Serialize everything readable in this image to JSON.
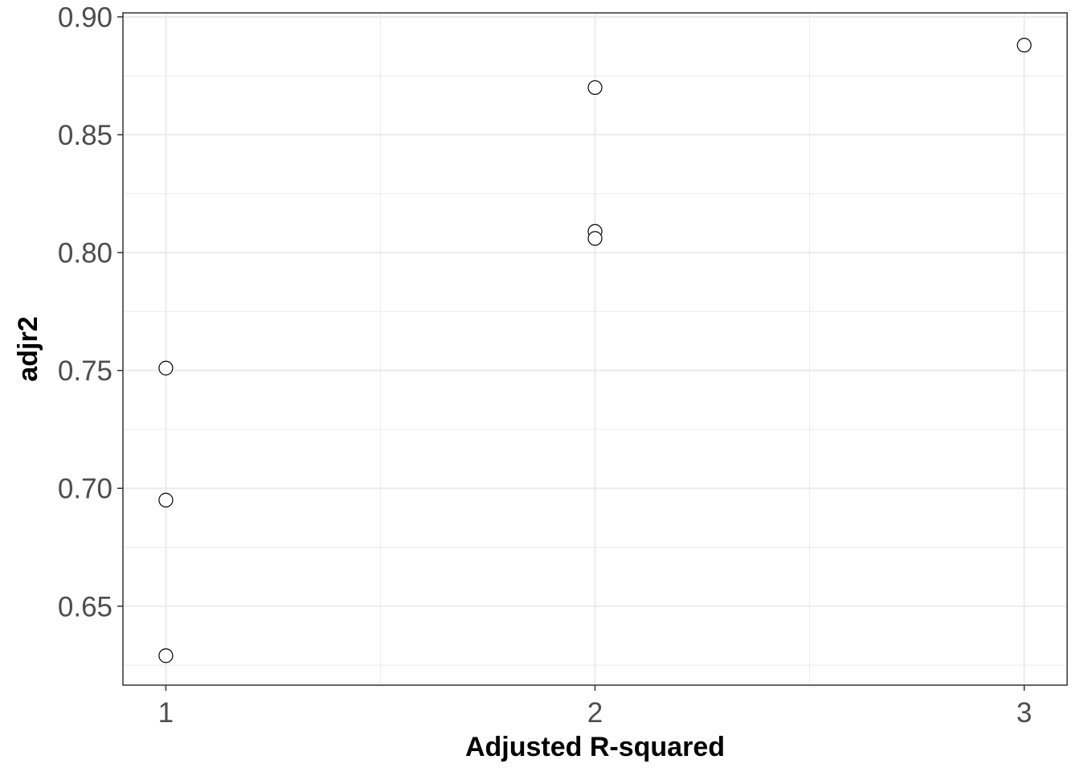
{
  "chart_data": {
    "type": "scatter",
    "title": "",
    "xlabel": "Adjusted R-squared",
    "ylabel": "adjr2",
    "xlim": [
      0.9,
      3.1
    ],
    "ylim": [
      0.6165,
      0.9017
    ],
    "x_major_ticks": [
      1,
      2,
      3
    ],
    "x_minor_ticks": [
      1.5,
      2.5
    ],
    "x_tick_labels": [
      "1",
      "2",
      "3"
    ],
    "y_major_ticks": [
      0.65,
      0.7,
      0.75,
      0.8,
      0.85,
      0.9
    ],
    "y_minor_ticks": [
      0.625,
      0.675,
      0.725,
      0.775,
      0.825,
      0.875
    ],
    "y_tick_labels": [
      "0.65",
      "0.70",
      "0.75",
      "0.80",
      "0.85",
      "0.90"
    ],
    "grid": true,
    "legend": "none",
    "marker": "open-circle",
    "series": [
      {
        "points": [
          {
            "x": 1,
            "y": 0.751
          },
          {
            "x": 1,
            "y": 0.695
          },
          {
            "x": 1,
            "y": 0.629
          },
          {
            "x": 2,
            "y": 0.87
          },
          {
            "x": 2,
            "y": 0.809
          },
          {
            "x": 2,
            "y": 0.806
          },
          {
            "x": 3,
            "y": 0.888
          }
        ]
      }
    ],
    "colors": {
      "panel_background": "#ffffff",
      "grid": "#ebebeb",
      "border": "#333333",
      "tick_text": "#4d4d4d",
      "title_text": "#000000",
      "point_stroke": "#000000",
      "point_fill": "#ffffff"
    }
  }
}
